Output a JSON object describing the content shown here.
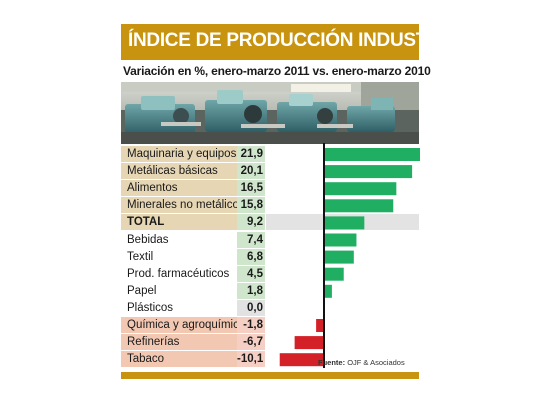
{
  "title": "ÍNDICE DE PRODUCCIÓN INDUSTRIAL",
  "subtitle": "Variación en %, enero-marzo 2011 vs. enero-marzo 2010",
  "source_label": "Fuente:",
  "source_name": "OJF & Asociados",
  "colors": {
    "gold": "#c8940f",
    "positive_bar": "#1fae62",
    "negative_bar": "#d42027",
    "label_tan": "#e6d6b4",
    "label_red": "#f3c8b3",
    "value_green": "#cfe6cc",
    "value_red": "#f6cfc4",
    "value_gray": "#e2e2e2",
    "total_row": "#e3e3e3"
  },
  "chart_data": {
    "type": "bar",
    "orientation": "horizontal",
    "title": "ÍNDICE DE PRODUCCIÓN INDUSTRIAL",
    "subtitle": "Variación en %, enero-marzo 2011 vs. enero-marzo 2010",
    "categories": [
      "Maquinaria y equipos",
      "Metálicas básicas",
      "Alimentos",
      "Minerales no metálicos",
      "TOTAL",
      "Bebidas",
      "Textil",
      "Prod. farmacéuticos",
      "Papel",
      "Plásticos",
      "Química y agroquímica",
      "Refinerías",
      "Tabaco"
    ],
    "values": [
      21.9,
      20.1,
      16.5,
      15.8,
      9.2,
      7.4,
      6.8,
      4.5,
      1.8,
      0.0,
      -1.8,
      -6.7,
      -10.1
    ],
    "value_labels": [
      "21,9",
      "20,1",
      "16,5",
      "15,8",
      "9,2",
      "7,4",
      "6,8",
      "4,5",
      "1,8",
      "0,0",
      "-1,8",
      "-6,7",
      "-10,1"
    ],
    "xlim": [
      -10.1,
      21.9
    ],
    "zero_line": true,
    "grid": false,
    "legend": false
  }
}
